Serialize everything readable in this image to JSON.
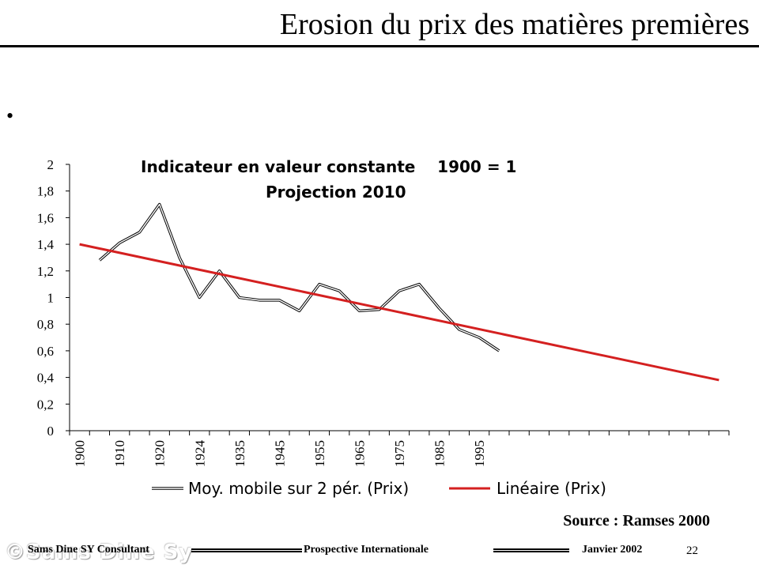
{
  "slide": {
    "title": "Erosion du prix des matières premières",
    "bullet": "•",
    "source": "Source : Ramses 2000",
    "footer": {
      "left": "Sams Dine SY Consultant",
      "center": "Prospective Internationale",
      "right": "Janvier 2002",
      "page_number": "22",
      "watermark": "©Sams Dine Sy"
    }
  },
  "chart_data": {
    "type": "line",
    "title": "Indicateur en valeur constante    1900 = 1",
    "subtitle": "Projection  2010",
    "xlabel": "",
    "ylabel": "",
    "ylim": [
      0,
      2
    ],
    "yticks": [
      0,
      0.2,
      0.4,
      0.6,
      0.8,
      1,
      1.2,
      1.4,
      1.6,
      1.8,
      2
    ],
    "ytick_labels": [
      "0",
      "0,2",
      "0,4",
      "0,6",
      "0,8",
      "1",
      "1,2",
      "1,4",
      "1,6",
      "1,8",
      "2"
    ],
    "category_count": 33,
    "x_tick_labels": [
      {
        "index": 0,
        "label": "1900"
      },
      {
        "index": 2,
        "label": "1910"
      },
      {
        "index": 4,
        "label": "1920"
      },
      {
        "index": 6,
        "label": "1924"
      },
      {
        "index": 8,
        "label": "1935"
      },
      {
        "index": 10,
        "label": "1945"
      },
      {
        "index": 12,
        "label": "1955"
      },
      {
        "index": 14,
        "label": "1965"
      },
      {
        "index": 16,
        "label": "1975"
      },
      {
        "index": 18,
        "label": "1985"
      },
      {
        "index": 20,
        "label": "1995"
      }
    ],
    "grid": false,
    "legend_position": "bottom",
    "series": [
      {
        "name": "Moy. mobile sur 2 pér. (Prix)",
        "style": "double-line",
        "color": "#000000",
        "start_index": 1,
        "values": [
          1.28,
          1.41,
          1.49,
          1.7,
          1.3,
          1.0,
          1.2,
          1.0,
          0.98,
          0.98,
          0.9,
          1.1,
          1.05,
          0.9,
          0.91,
          1.05,
          1.1,
          0.92,
          0.76,
          0.7,
          0.6
        ]
      },
      {
        "name": "Linéaire (Prix)",
        "style": "trendline",
        "color": "#d42020",
        "start_index": 0,
        "end_index": 32,
        "start_value": 1.4,
        "end_value": 0.38
      }
    ]
  }
}
